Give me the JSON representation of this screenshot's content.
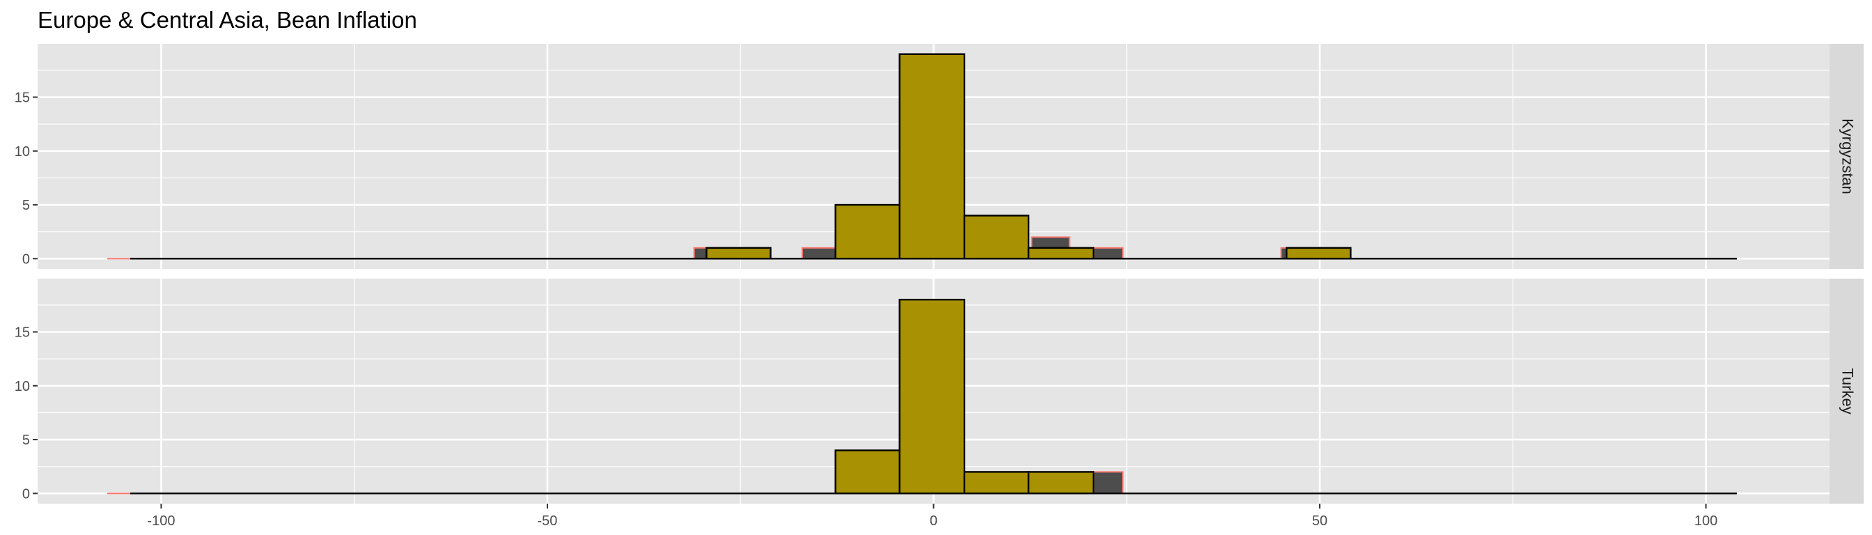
{
  "chart_data": {
    "type": "bar",
    "title": "Europe & Central Asia, Bean Inflation",
    "xlabel": "",
    "ylabel": "",
    "xlim": [
      -116,
      116
    ],
    "ylim": [
      -0.95,
      19.95
    ],
    "x_ticks": [
      -100,
      -50,
      0,
      50,
      100
    ],
    "x_tick_labels": [
      "-100",
      "-50",
      "0",
      "50",
      "100"
    ],
    "y_ticks": [
      0,
      5,
      10,
      15
    ],
    "y_tick_labels": [
      "0",
      "5",
      "10",
      "15"
    ],
    "grid": true,
    "legend": "none",
    "colors": {
      "panel_bg": "#e5e5e5",
      "grid": "#ffffff",
      "strip_bg": "#d9d9d9",
      "fill": "#a89102",
      "outline": "#000000",
      "back_fill": "#4d4d4d",
      "back_outline": "#f8766d"
    },
    "panels": [
      {
        "label": "Kyrgyzstan",
        "x_range": [
          -104,
          104
        ],
        "back_x_range": [
          -107,
          0
        ],
        "bars": [
          {
            "x0": -29.4,
            "x1": -21.1,
            "value": 1
          },
          {
            "x0": -12.7,
            "x1": -4.4,
            "value": 5
          },
          {
            "x0": -4.4,
            "x1": 4.0,
            "value": 19
          },
          {
            "x0": 4.0,
            "x1": 12.3,
            "value": 4
          },
          {
            "x0": 12.3,
            "x1": 20.7,
            "value": 1
          },
          {
            "x0": 45.7,
            "x1": 54.0,
            "value": 1
          }
        ],
        "back_bars": [
          {
            "x0": -31.0,
            "x1": -22.5,
            "value": 1
          },
          {
            "x0": -17.0,
            "x1": -8.5,
            "value": 1
          },
          {
            "x0": 12.7,
            "x1": 17.6,
            "value": 2
          },
          {
            "x0": 20.7,
            "x1": 24.5,
            "value": 1
          },
          {
            "x0": 45.0,
            "x1": 51.5,
            "value": 1
          }
        ]
      },
      {
        "label": "Turkey",
        "x_range": [
          -104,
          104
        ],
        "back_x_range": [
          -107,
          0
        ],
        "bars": [
          {
            "x0": -12.7,
            "x1": -4.4,
            "value": 4
          },
          {
            "x0": -4.4,
            "x1": 4.0,
            "value": 18
          },
          {
            "x0": 4.0,
            "x1": 12.3,
            "value": 2
          },
          {
            "x0": 12.3,
            "x1": 20.7,
            "value": 2
          }
        ],
        "back_bars": [
          {
            "x0": 20.7,
            "x1": 24.5,
            "value": 2
          }
        ]
      }
    ]
  }
}
